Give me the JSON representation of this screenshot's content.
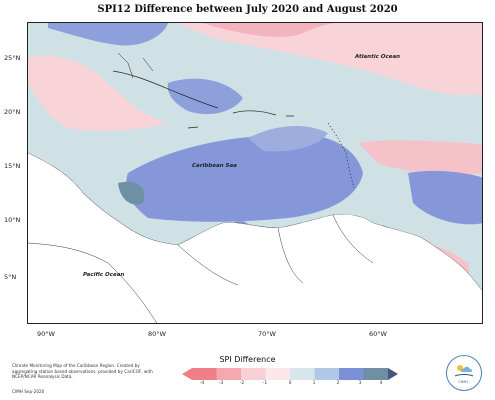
{
  "title": "SPI12 Difference between July 2020 and August 2020",
  "labels": {
    "atlantic": "Atlantic Ocean",
    "caribbean": "Caribbean Sea",
    "pacific": "Pacific Ocean"
  },
  "lat_ticks": [
    "25°N",
    "20°N",
    "15°N",
    "10°N",
    "5°N"
  ],
  "lon_ticks": [
    "90°W",
    "80°W",
    "70°W",
    "60°W"
  ],
  "credit": "Climate Monitoring Map of the Caribbean Region. Created by aggregating station based observations, provided by CariCOF, with NCEP/NCAR Reanalysis Data.",
  "stamp": "CIMH Sep-2020",
  "legend": {
    "title": "SPI Difference",
    "ticks": [
      "-4",
      "-3",
      "-2",
      "-1",
      "0",
      "1",
      "2",
      "3",
      "4"
    ],
    "colors": [
      "#f07f8a",
      "#f5a8b0",
      "#f8cfd4",
      "#fbe7ea",
      "#d6e6ea",
      "#b0c8e6",
      "#7c90d6",
      "#6f8fa4",
      "#48567f"
    ]
  },
  "logo_text": "CIMH"
}
